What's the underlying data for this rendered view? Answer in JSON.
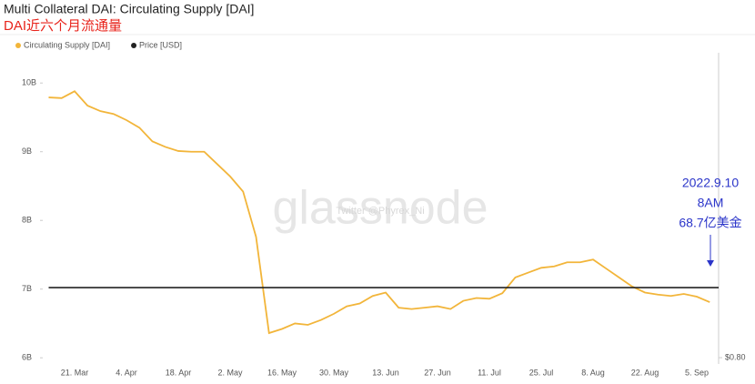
{
  "chart_data": {
    "type": "line",
    "title": "Multi Collateral DAI: Circulating Supply [DAI]",
    "subtitle": "DAI近六个月流通量",
    "watermark": "glassnode",
    "watermark_credit": "Twitter @Phyrex_Ni",
    "annotation": [
      "2022.9.10",
      "8AM",
      "68.7亿美金"
    ],
    "categories": [
      null,
      null,
      "21. Mar",
      null,
      null,
      null,
      "4. Apr",
      null,
      null,
      null,
      "18. Apr",
      null,
      null,
      null,
      "2. May",
      null,
      null,
      null,
      "16. May",
      null,
      null,
      null,
      "30. May",
      null,
      null,
      null,
      "13. Jun",
      null,
      null,
      null,
      "27. Jun",
      null,
      null,
      null,
      "11. Jul",
      null,
      null,
      null,
      "25. Jul",
      null,
      null,
      null,
      "8. Aug",
      null,
      null,
      null,
      "22. Aug",
      null,
      null,
      null,
      "5. Sep",
      null
    ],
    "series": [
      {
        "name": "Circulating Supply [DAI]",
        "color": "#f2b53a",
        "values": [
          9.79,
          9.78,
          9.88,
          9.67,
          9.59,
          9.55,
          9.46,
          9.35,
          9.15,
          9.07,
          9.01,
          9.0,
          9.0,
          8.82,
          8.64,
          8.42,
          7.76,
          6.36,
          6.42,
          6.5,
          6.48,
          6.55,
          6.64,
          6.75,
          6.79,
          6.9,
          6.95,
          6.73,
          6.71,
          6.73,
          6.75,
          6.71,
          6.83,
          6.87,
          6.86,
          6.94,
          7.17,
          7.24,
          7.31,
          7.33,
          7.39,
          7.39,
          7.43,
          7.3,
          7.17,
          7.04,
          6.95,
          6.92,
          6.9,
          6.93,
          6.89,
          6.81
        ]
      },
      {
        "name": "Price [USD]",
        "color": "#222222",
        "axis": "y2",
        "values": [
          1,
          1,
          1,
          1,
          1,
          1,
          1,
          1,
          1,
          1,
          1,
          1,
          1,
          1,
          1,
          1,
          1,
          1,
          1,
          1,
          1,
          1,
          1,
          1,
          1,
          1,
          1,
          1,
          1,
          1,
          1,
          1,
          1,
          1,
          1,
          1,
          1,
          1,
          1,
          1,
          1,
          1,
          1,
          1,
          1,
          1,
          1,
          1,
          1,
          1,
          1,
          1
        ]
      }
    ],
    "ylim": [
      5.91,
      10.44
    ],
    "yticks": [
      {
        "value": 6,
        "label": "6B"
      },
      {
        "value": 7,
        "label": "7B"
      },
      {
        "value": 8,
        "label": "8B"
      },
      {
        "value": 9,
        "label": "9B"
      },
      {
        "value": 10,
        "label": "10B"
      }
    ],
    "y2lim": [
      0.782,
      1.67
    ],
    "y2ticks": [
      {
        "value": 0.8,
        "label": "$0.80"
      }
    ]
  }
}
